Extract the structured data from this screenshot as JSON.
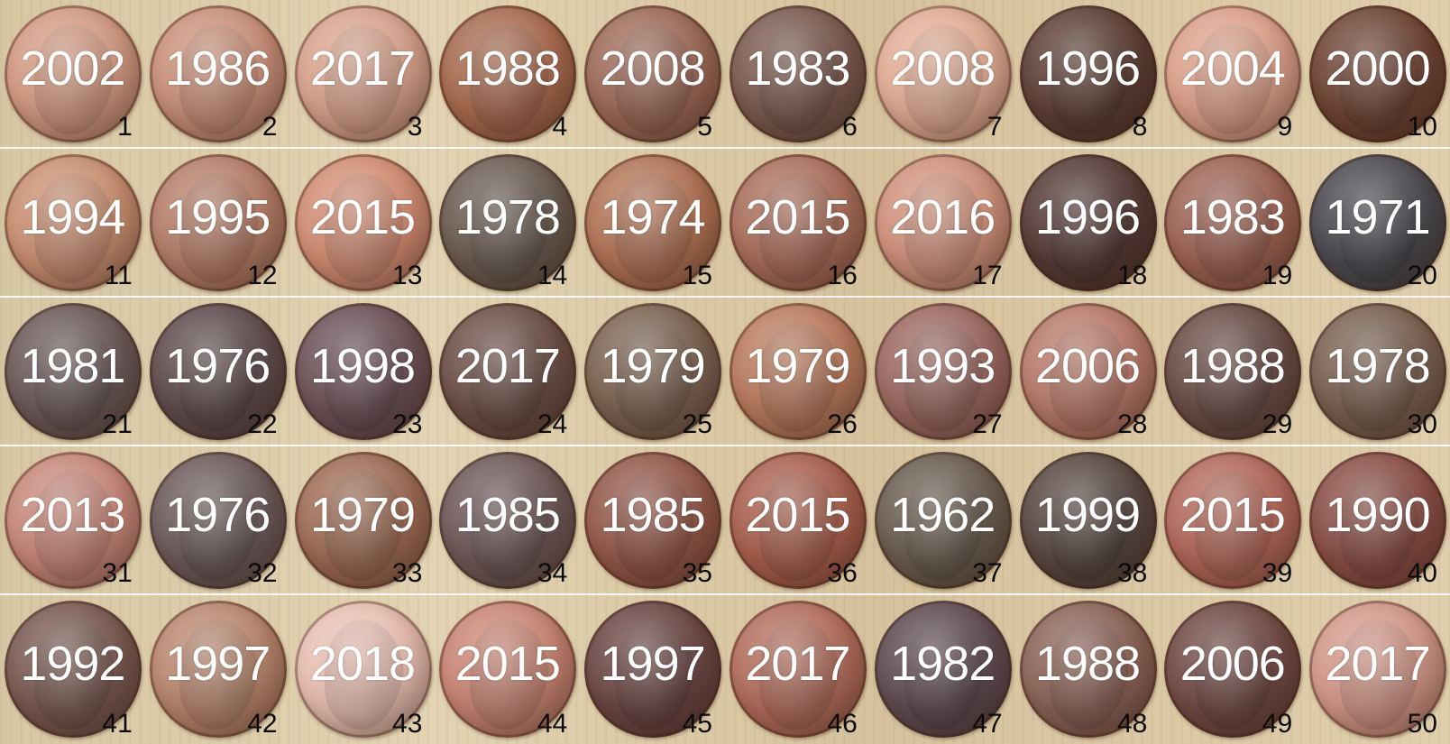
{
  "coins": [
    {
      "year": "2002",
      "number": "1",
      "color": "#d39a82"
    },
    {
      "year": "1986",
      "number": "2",
      "color": "#c99079"
    },
    {
      "year": "2017",
      "number": "3",
      "color": "#d8a38d"
    },
    {
      "year": "1988",
      "number": "4",
      "color": "#a76a4f"
    },
    {
      "year": "2008",
      "number": "5",
      "color": "#9c6a58"
    },
    {
      "year": "1983",
      "number": "6",
      "color": "#7a5a4f"
    },
    {
      "year": "2008",
      "number": "7",
      "color": "#e2ad95"
    },
    {
      "year": "1996",
      "number": "8",
      "color": "#5d3f36"
    },
    {
      "year": "2004",
      "number": "9",
      "color": "#dca18a"
    },
    {
      "year": "2000",
      "number": "10",
      "color": "#6e4434"
    },
    {
      "year": "1994",
      "number": "11",
      "color": "#c98f72"
    },
    {
      "year": "1995",
      "number": "12",
      "color": "#b57e68"
    },
    {
      "year": "2015",
      "number": "13",
      "color": "#d28d74"
    },
    {
      "year": "1978",
      "number": "14",
      "color": "#6a5c52"
    },
    {
      "year": "1974",
      "number": "15",
      "color": "#b17356"
    },
    {
      "year": "2015",
      "number": "16",
      "color": "#aa6e5b"
    },
    {
      "year": "2016",
      "number": "17",
      "color": "#d0927c"
    },
    {
      "year": "1996",
      "number": "18",
      "color": "#553b36"
    },
    {
      "year": "1983",
      "number": "19",
      "color": "#9d6354"
    },
    {
      "year": "1971",
      "number": "20",
      "color": "#4b4a50"
    },
    {
      "year": "1981",
      "number": "21",
      "color": "#6b5a59"
    },
    {
      "year": "1976",
      "number": "22",
      "color": "#5f4c4d"
    },
    {
      "year": "1998",
      "number": "23",
      "color": "#6c5157"
    },
    {
      "year": "2017",
      "number": "24",
      "color": "#6c5047"
    },
    {
      "year": "1979",
      "number": "25",
      "color": "#7c6352"
    },
    {
      "year": "1979",
      "number": "26",
      "color": "#b97b5e"
    },
    {
      "year": "1993",
      "number": "27",
      "color": "#9b6961"
    },
    {
      "year": "2006",
      "number": "28",
      "color": "#b77a6a"
    },
    {
      "year": "1988",
      "number": "29",
      "color": "#6a4d47"
    },
    {
      "year": "1978",
      "number": "30",
      "color": "#7a6151"
    },
    {
      "year": "2013",
      "number": "31",
      "color": "#c7877a"
    },
    {
      "year": "1976",
      "number": "32",
      "color": "#6c5b5b"
    },
    {
      "year": "1979",
      "number": "33",
      "color": "#9e6c55"
    },
    {
      "year": "1985",
      "number": "34",
      "color": "#6e5958"
    },
    {
      "year": "1985",
      "number": "35",
      "color": "#93584a"
    },
    {
      "year": "2015",
      "number": "36",
      "color": "#a9604e"
    },
    {
      "year": "1962",
      "number": "37",
      "color": "#6a5d50"
    },
    {
      "year": "1999",
      "number": "38",
      "color": "#584842"
    },
    {
      "year": "2015",
      "number": "39",
      "color": "#b2685a"
    },
    {
      "year": "1990",
      "number": "40",
      "color": "#8a4f47"
    },
    {
      "year": "1992",
      "number": "41",
      "color": "#795a52"
    },
    {
      "year": "1997",
      "number": "42",
      "color": "#b9876e"
    },
    {
      "year": "2018",
      "number": "43",
      "color": "#e9bfb2"
    },
    {
      "year": "2015",
      "number": "44",
      "color": "#c98574"
    },
    {
      "year": "1997",
      "number": "45",
      "color": "#6b4744"
    },
    {
      "year": "2017",
      "number": "46",
      "color": "#b26d5c"
    },
    {
      "year": "1982",
      "number": "47",
      "color": "#5f4c52"
    },
    {
      "year": "1988",
      "number": "48",
      "color": "#8b6357"
    },
    {
      "year": "2006",
      "number": "49",
      "color": "#714a45"
    },
    {
      "year": "2017",
      "number": "50",
      "color": "#d39889"
    }
  ]
}
